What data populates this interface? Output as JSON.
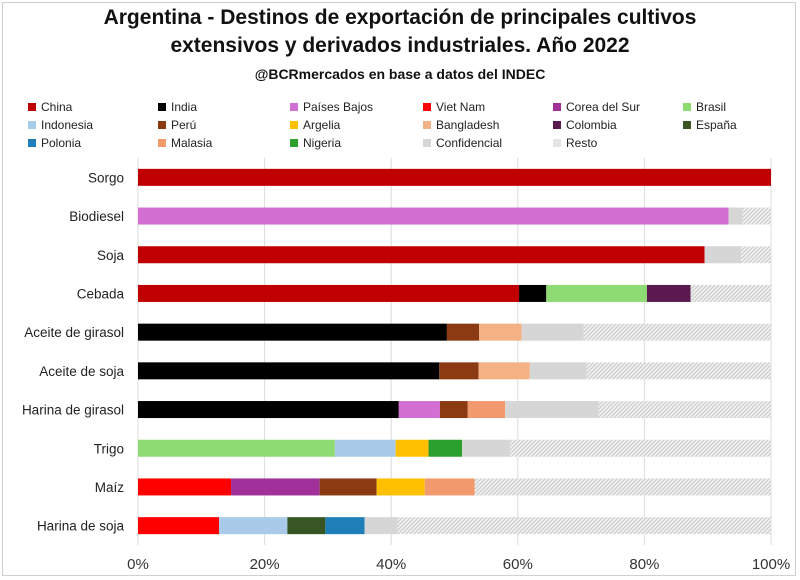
{
  "chart_data": {
    "type": "bar",
    "orientation": "horizontal",
    "stacked": true,
    "title": "Argentina - Destinos de exportación de principales cultivos extensivos y derivados industriales. Año 2022",
    "title_lines": [
      "Argentina - Destinos de exportación de principales cultivos",
      "extensivos y derivados industriales. Año 2022"
    ],
    "subtitle": "@BCRmercados en base a datos del INDEC",
    "xlim": [
      0,
      100
    ],
    "xticks": [
      0,
      20,
      40,
      60,
      80,
      100
    ],
    "xtick_labels": [
      "0%",
      "20%",
      "40%",
      "60%",
      "80%",
      "100%"
    ],
    "legend_position": "top",
    "categories": [
      "Sorgo",
      "Biodiesel",
      "Soja",
      "Cebada",
      "Aceite de girasol",
      "Aceite de soja",
      "Harina de girasol",
      "Trigo",
      "Maíz",
      "Harina de soja"
    ],
    "series": [
      {
        "name": "China",
        "color": "#c00000",
        "values": [
          100,
          0,
          89.5,
          60.2,
          0,
          0,
          0,
          0,
          0,
          0
        ]
      },
      {
        "name": "India",
        "color": "#000000",
        "values": [
          0,
          0,
          0,
          4.3,
          48.8,
          47.6,
          41.2,
          0,
          0,
          0
        ]
      },
      {
        "name": "Países Bajos",
        "color": "#d36fd3",
        "values": [
          0,
          93.3,
          0,
          0,
          0,
          0,
          6.5,
          0,
          0,
          0
        ]
      },
      {
        "name": "Viet Nam",
        "color": "#ff0000",
        "values": [
          0,
          0,
          0,
          0,
          0,
          0,
          0,
          0,
          14.7,
          12.8
        ]
      },
      {
        "name": "Corea del Sur",
        "color": "#a1309a",
        "values": [
          0,
          0,
          0,
          0,
          0,
          0,
          0,
          0,
          14.0,
          0
        ]
      },
      {
        "name": "Brasil",
        "color": "#8fdb73",
        "values": [
          0,
          0,
          0,
          15.9,
          0,
          0,
          0,
          31.1,
          0,
          0
        ]
      },
      {
        "name": "Indonesia",
        "color": "#a9cbe9",
        "values": [
          0,
          0,
          0,
          0,
          0,
          0,
          0,
          9.6,
          0,
          10.8
        ]
      },
      {
        "name": "Perú",
        "color": "#8b3a12",
        "values": [
          0,
          0,
          0,
          0,
          5.1,
          6.2,
          4.4,
          0,
          9.0,
          0
        ]
      },
      {
        "name": "Argelia",
        "color": "#ffc000",
        "values": [
          0,
          0,
          0,
          0,
          0,
          0,
          0,
          5.2,
          7.6,
          0
        ]
      },
      {
        "name": "Bangladesh",
        "color": "#f4b183",
        "values": [
          0,
          0,
          0,
          0,
          6.7,
          8.1,
          0,
          0,
          0,
          0
        ]
      },
      {
        "name": "Colombia",
        "color": "#5a1a4f",
        "values": [
          0,
          0,
          0,
          6.9,
          0,
          0,
          0,
          0,
          0,
          0
        ]
      },
      {
        "name": "España",
        "color": "#375623",
        "values": [
          0,
          0,
          0,
          0,
          0,
          0,
          0,
          0,
          0,
          6.0
        ]
      },
      {
        "name": "Polonia",
        "color": "#1f7fb8",
        "values": [
          0,
          0,
          0,
          0,
          0,
          0,
          0,
          0,
          0,
          6.2
        ]
      },
      {
        "name": "Malasia",
        "color": "#f29a6e",
        "values": [
          0,
          0,
          0,
          0,
          0,
          0,
          5.9,
          0,
          7.9,
          0
        ]
      },
      {
        "name": "Nigeria",
        "color": "#2ca02c",
        "values": [
          0,
          0,
          0,
          0,
          0,
          0,
          0,
          5.3,
          0,
          0
        ]
      },
      {
        "name": "Confidencial",
        "color": "#d6d6d6",
        "values": [
          0,
          2.2,
          5.8,
          0,
          9.8,
          9.0,
          14.8,
          7.6,
          0,
          5.2
        ]
      },
      {
        "name": "Resto",
        "color": "#ececec",
        "pattern": "hatch",
        "values": [
          0,
          4.5,
          4.7,
          12.7,
          29.6,
          29.1,
          27.2,
          41.2,
          46.8,
          59.0
        ]
      }
    ]
  }
}
